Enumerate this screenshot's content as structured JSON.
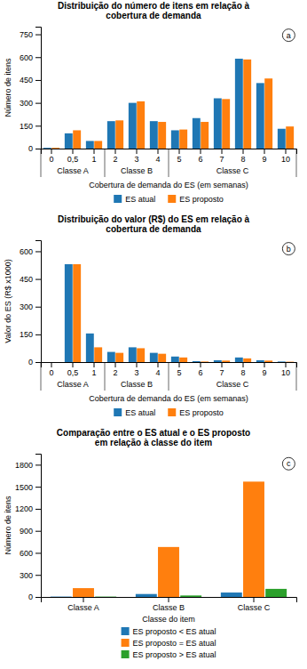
{
  "chart_data": [
    {
      "type": "bar",
      "title": "Distribuição do número de itens em relação à\ncobertura de demanda",
      "x_label": "Cobertura de demanda do ES (em semanas)",
      "y_label": "Número de itens",
      "categories": [
        "0",
        "0,5",
        "1",
        "2",
        "3",
        "4",
        "5",
        "6",
        "7",
        "8",
        "9",
        "10"
      ],
      "series": [
        {
          "name": "ES atual",
          "values": [
            5,
            100,
            50,
            180,
            300,
            180,
            120,
            200,
            330,
            590,
            430,
            130
          ]
        },
        {
          "name": "ES proposto",
          "values": [
            5,
            120,
            50,
            185,
            310,
            175,
            125,
            175,
            325,
            585,
            460,
            145
          ]
        }
      ],
      "annotations": [
        {
          "text": "a"
        },
        {
          "text": "Classe A",
          "categories": [
            "0",
            "0,5",
            "1"
          ]
        },
        {
          "text": "Classe B",
          "categories": [
            "2",
            "3",
            "4"
          ]
        },
        {
          "text": "Classe C",
          "categories": [
            "5",
            "6",
            "7",
            "8",
            "9",
            "10"
          ]
        }
      ],
      "ylim": [
        0,
        800
      ],
      "yticks": [
        0,
        150,
        300,
        450,
        600,
        750
      ],
      "grid": false,
      "legend": "bottom"
    },
    {
      "type": "bar",
      "title": "Distribuição do valor (R$) do ES em relação à\ncobertura de demanda",
      "x_label": "Cobertura de demanda do ES (em semanas)",
      "y_label": "Valor do ES (R$ x1000)",
      "categories": [
        "0",
        "0,5",
        "1",
        "2",
        "3",
        "4",
        "5",
        "6",
        "7",
        "8",
        "9",
        "10"
      ],
      "series": [
        {
          "name": "ES atual",
          "values": [
            0,
            530,
            155,
            55,
            80,
            50,
            30,
            5,
            10,
            25,
            10,
            3
          ]
        },
        {
          "name": "ES proposto",
          "values": [
            0,
            530,
            80,
            50,
            75,
            45,
            25,
            3,
            8,
            20,
            8,
            2
          ]
        }
      ],
      "annotations": [
        {
          "text": "b"
        },
        {
          "text": "Classe A",
          "categories": [
            "0",
            "0,5",
            "1"
          ]
        },
        {
          "text": "Classe B",
          "categories": [
            "2",
            "3",
            "4"
          ]
        },
        {
          "text": "Classe C",
          "categories": [
            "5",
            "6",
            "7",
            "8",
            "9",
            "10"
          ]
        }
      ],
      "ylim": [
        0,
        660
      ],
      "yticks": [
        0,
        150,
        300,
        450,
        600
      ],
      "grid": false,
      "legend": "bottom"
    },
    {
      "type": "bar",
      "title": "Comparação entre o ES atual e o ES proposto\nem relação à classe do item",
      "x_label": "Classe do item",
      "y_label": "Número de itens",
      "categories": [
        "Classe A",
        "Classe B",
        "Classe C"
      ],
      "series": [
        {
          "name": "ES proposto < ES atual",
          "values": [
            5,
            40,
            60
          ]
        },
        {
          "name": "ES proposto = ES atual",
          "values": [
            120,
            680,
            1570
          ]
        },
        {
          "name": "ES proposto > ES atual",
          "values": [
            5,
            20,
            110
          ]
        }
      ],
      "annotations": [
        {
          "text": "c"
        }
      ],
      "ylim": [
        0,
        1950
      ],
      "yticks": [
        0,
        300,
        600,
        900,
        1200,
        1500,
        1800
      ],
      "grid": false,
      "legend": "bottom"
    }
  ]
}
